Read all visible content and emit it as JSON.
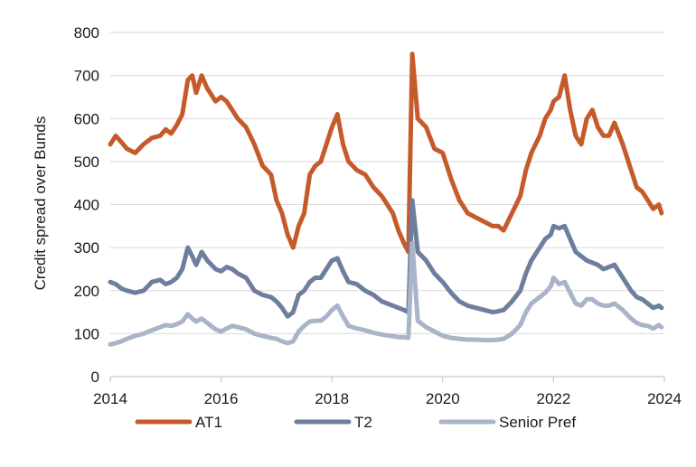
{
  "chart_data": {
    "type": "line",
    "title": "",
    "xlabel": "",
    "ylabel": "Credit spread over Bunds",
    "xlim": [
      2014,
      2024
    ],
    "ylim": [
      0,
      800
    ],
    "x_ticks": [
      2014,
      2016,
      2018,
      2020,
      2022,
      2024
    ],
    "x_tick_labels": [
      "2014",
      "2016",
      "2018",
      "2020",
      "2022",
      "2024"
    ],
    "y_ticks": [
      0,
      100,
      200,
      300,
      400,
      500,
      600,
      700,
      800
    ],
    "y_tick_labels": [
      "0",
      "100",
      "200",
      "300",
      "400",
      "500",
      "600",
      "700",
      "800"
    ],
    "grid": "horizontal",
    "legend_position": "bottom",
    "x": [
      2014.0,
      2014.1,
      2014.2,
      2014.3,
      2014.45,
      2014.6,
      2014.75,
      2014.9,
      2015.0,
      2015.1,
      2015.2,
      2015.3,
      2015.4,
      2015.48,
      2015.55,
      2015.65,
      2015.75,
      2015.9,
      2016.0,
      2016.1,
      2016.2,
      2016.3,
      2016.45,
      2016.6,
      2016.75,
      2016.9,
      2017.0,
      2017.1,
      2017.2,
      2017.3,
      2017.4,
      2017.5,
      2017.6,
      2017.7,
      2017.8,
      2017.9,
      2018.0,
      2018.1,
      2018.2,
      2018.3,
      2018.45,
      2018.6,
      2018.75,
      2018.9,
      2019.0,
      2019.1,
      2019.2,
      2019.3,
      2019.38,
      2019.45,
      2019.55,
      2019.7,
      2019.85,
      2020.0,
      2020.15,
      2020.3,
      2020.45,
      2020.6,
      2020.75,
      2020.9,
      2021.0,
      2021.1,
      2021.25,
      2021.4,
      2021.5,
      2021.6,
      2021.75,
      2021.85,
      2021.95,
      2022.0,
      2022.1,
      2022.2,
      2022.3,
      2022.4,
      2022.5,
      2022.6,
      2022.7,
      2022.8,
      2022.9,
      2023.0,
      2023.1,
      2023.25,
      2023.4,
      2023.5,
      2023.6,
      2023.7,
      2023.8,
      2023.9,
      2023.95
    ],
    "series": [
      {
        "name": "AT1",
        "color": "#c55a2b",
        "values": [
          540,
          560,
          545,
          530,
          520,
          540,
          555,
          560,
          575,
          565,
          585,
          610,
          690,
          700,
          660,
          700,
          670,
          640,
          650,
          640,
          620,
          600,
          580,
          540,
          490,
          470,
          410,
          380,
          330,
          300,
          350,
          380,
          470,
          490,
          500,
          540,
          580,
          610,
          540,
          500,
          480,
          470,
          440,
          420,
          400,
          380,
          340,
          310,
          290,
          750,
          600,
          580,
          530,
          520,
          460,
          410,
          380,
          370,
          360,
          350,
          350,
          340,
          380,
          420,
          480,
          520,
          560,
          600,
          620,
          640,
          650,
          700,
          620,
          560,
          540,
          600,
          620,
          580,
          560,
          560,
          590,
          540,
          480,
          440,
          430,
          410,
          390,
          400,
          380
        ]
      },
      {
        "name": "T2",
        "color": "#6d7e9e",
        "values": [
          220,
          215,
          205,
          200,
          195,
          200,
          220,
          225,
          215,
          220,
          230,
          250,
          300,
          280,
          260,
          290,
          270,
          250,
          245,
          255,
          250,
          240,
          230,
          200,
          190,
          185,
          175,
          160,
          140,
          150,
          190,
          200,
          220,
          230,
          230,
          250,
          270,
          275,
          245,
          220,
          215,
          200,
          190,
          175,
          170,
          165,
          160,
          155,
          150,
          410,
          290,
          270,
          240,
          220,
          195,
          175,
          165,
          160,
          155,
          150,
          152,
          155,
          175,
          200,
          240,
          270,
          300,
          320,
          330,
          350,
          345,
          350,
          320,
          290,
          280,
          270,
          265,
          260,
          250,
          255,
          260,
          230,
          200,
          185,
          180,
          170,
          160,
          165,
          160
        ]
      },
      {
        "name": "Senior Pref",
        "color": "#aab4c8",
        "values": [
          75,
          78,
          82,
          88,
          95,
          100,
          108,
          115,
          120,
          118,
          122,
          128,
          145,
          135,
          128,
          135,
          125,
          110,
          105,
          112,
          118,
          115,
          110,
          100,
          95,
          90,
          88,
          82,
          78,
          82,
          105,
          118,
          128,
          130,
          130,
          140,
          155,
          165,
          140,
          118,
          112,
          108,
          102,
          98,
          96,
          94,
          92,
          92,
          90,
          310,
          130,
          115,
          105,
          95,
          90,
          88,
          86,
          86,
          85,
          85,
          86,
          88,
          100,
          120,
          150,
          170,
          185,
          195,
          210,
          230,
          215,
          220,
          195,
          170,
          165,
          180,
          180,
          170,
          165,
          165,
          170,
          155,
          135,
          125,
          120,
          118,
          112,
          120,
          115
        ]
      }
    ]
  }
}
